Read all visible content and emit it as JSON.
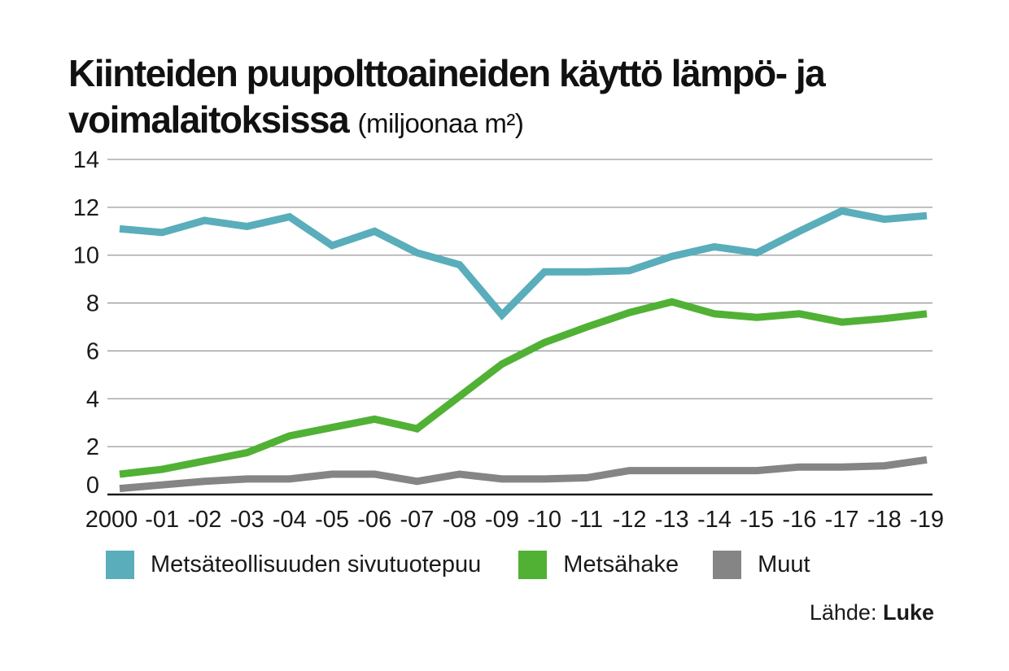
{
  "chart_data": {
    "type": "line",
    "title": "Kiinteiden puupolttoaineiden käyttö lämpö- ja voimalaitoksissa",
    "unit": "(miljoonaa m²)",
    "xlabel": "",
    "ylabel": "",
    "categories": [
      "2000",
      "-01",
      "-02",
      "-03",
      "-04",
      "-05",
      "-06",
      "-07",
      "-08",
      "-09",
      "-10",
      "-11",
      "-12",
      "-13",
      "-14",
      "-15",
      "-16",
      "-17",
      "-18",
      "-19"
    ],
    "ylim": [
      0,
      14
    ],
    "yticks": [
      "0",
      "2",
      "4",
      "6",
      "8",
      "10",
      "12",
      "14"
    ],
    "grid": true,
    "legend_position": "bottom",
    "series": [
      {
        "name": "Metsäteollisuuden sivutuotepuu",
        "color": "#5aadbb",
        "values": [
          11.1,
          10.95,
          11.45,
          11.2,
          11.6,
          10.4,
          11.0,
          10.1,
          9.6,
          7.5,
          9.3,
          9.3,
          9.35,
          9.95,
          10.35,
          10.1,
          11.0,
          11.85,
          11.5,
          11.65
        ]
      },
      {
        "name": "Metsähake",
        "color": "#50b135",
        "values": [
          0.85,
          1.05,
          1.4,
          1.75,
          2.45,
          2.8,
          3.15,
          2.75,
          4.1,
          5.45,
          6.35,
          7.0,
          7.6,
          8.05,
          7.55,
          7.4,
          7.55,
          7.2,
          7.35,
          7.55
        ]
      },
      {
        "name": "Muut",
        "color": "#858585",
        "values": [
          0.25,
          0.4,
          0.55,
          0.65,
          0.65,
          0.85,
          0.85,
          0.55,
          0.85,
          0.65,
          0.65,
          0.7,
          1.0,
          1.0,
          1.0,
          1.0,
          1.15,
          1.15,
          1.2,
          1.45
        ]
      }
    ]
  },
  "source": {
    "label": "Lähde:",
    "name": "Luke"
  }
}
